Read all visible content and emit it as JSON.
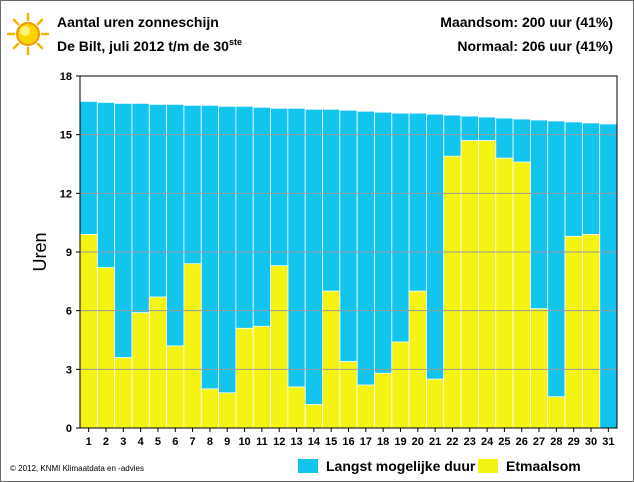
{
  "header": {
    "title": "Aantal uren zonneschijn",
    "subtitle_main": "De Bilt, juli 2012 t/m de 30",
    "subtitle_sup": "ste",
    "monthly_sum": "Maandsom: 200 uur (41%)",
    "normal": "Normaal: 206 uur (41%)",
    "sun_icon": "sun-icon"
  },
  "copyright": "© 2012, KNMI Klimaatdata en -advies",
  "legend": [
    {
      "label": "Langst mogelijke duur",
      "color": "#13c4ef"
    },
    {
      "label": "Etmaalsom",
      "color": "#f4f313"
    }
  ],
  "chart_data": {
    "type": "bar",
    "ylabel": "Uren",
    "ylim": [
      0,
      18
    ],
    "yticks": [
      0,
      3,
      6,
      9,
      12,
      15,
      18
    ],
    "categories": [
      "1",
      "2",
      "3",
      "4",
      "5",
      "6",
      "7",
      "8",
      "9",
      "10",
      "11",
      "12",
      "13",
      "14",
      "15",
      "16",
      "17",
      "18",
      "19",
      "20",
      "21",
      "22",
      "23",
      "24",
      "25",
      "26",
      "27",
      "28",
      "29",
      "30",
      "31"
    ],
    "grid": true,
    "legend_position": "bottom",
    "series": [
      {
        "name": "Langst mogelijke duur",
        "color": "#13c4ef",
        "values": [
          16.7,
          16.65,
          16.6,
          16.6,
          16.55,
          16.55,
          16.5,
          16.5,
          16.45,
          16.45,
          16.4,
          16.35,
          16.35,
          16.3,
          16.3,
          16.25,
          16.2,
          16.15,
          16.1,
          16.1,
          16.05,
          16.0,
          15.95,
          15.9,
          15.85,
          15.8,
          15.75,
          15.7,
          15.65,
          15.6,
          15.55
        ]
      },
      {
        "name": "Etmaalsom",
        "color": "#f4f313",
        "values": [
          9.9,
          8.2,
          3.6,
          5.9,
          6.7,
          4.2,
          8.4,
          2.0,
          1.8,
          5.1,
          5.2,
          8.3,
          2.1,
          1.2,
          7.0,
          3.4,
          2.2,
          2.8,
          4.4,
          7.0,
          2.5,
          13.9,
          14.7,
          14.7,
          13.8,
          13.6,
          6.1,
          1.6,
          9.8,
          9.9,
          0
        ]
      }
    ]
  }
}
